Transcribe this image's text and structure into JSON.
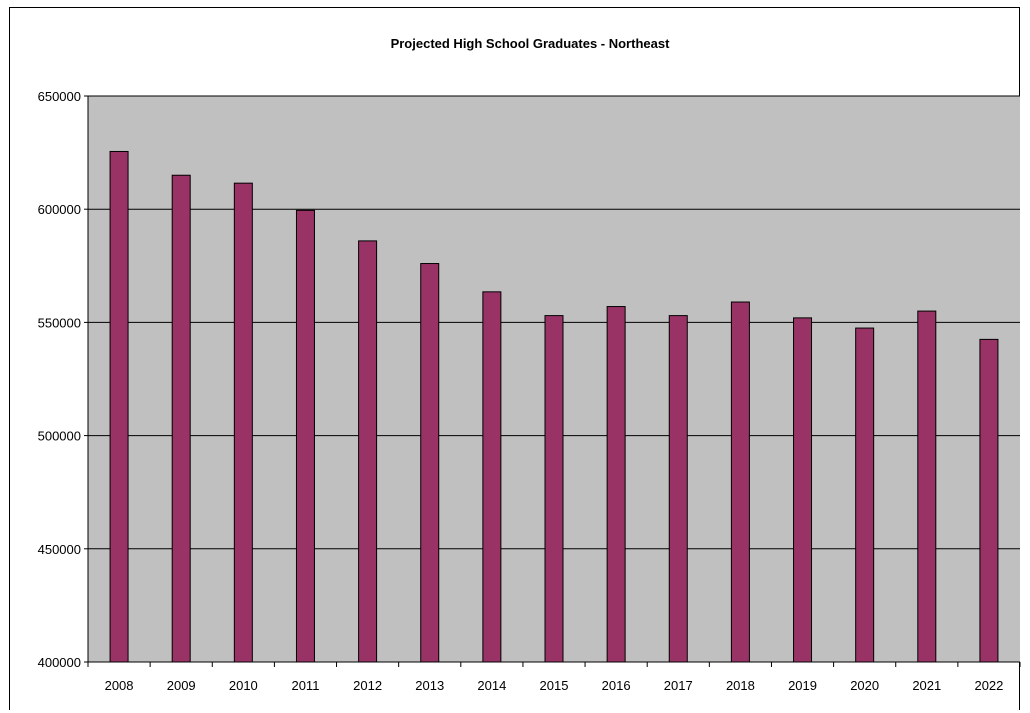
{
  "chart_data": {
    "type": "bar",
    "title": "Projected High School Graduates - Northeast",
    "xlabel": "",
    "ylabel": "",
    "categories": [
      "2008",
      "2009",
      "2010",
      "2011",
      "2012",
      "2013",
      "2014",
      "2015",
      "2016",
      "2017",
      "2018",
      "2019",
      "2020",
      "2021",
      "2022"
    ],
    "values": [
      625500,
      615000,
      611500,
      599500,
      586000,
      576000,
      563500,
      553000,
      557000,
      553000,
      559000,
      552000,
      547500,
      555000,
      542500
    ],
    "ylim": [
      400000,
      650000
    ],
    "yticks": [
      "400000",
      "450000",
      "500000",
      "550000",
      "600000",
      "650000"
    ],
    "grid": true,
    "legend": "none",
    "colors": {
      "bar": "#993366",
      "plot_background": "#c0c0c0",
      "gridline": "#000000"
    }
  }
}
